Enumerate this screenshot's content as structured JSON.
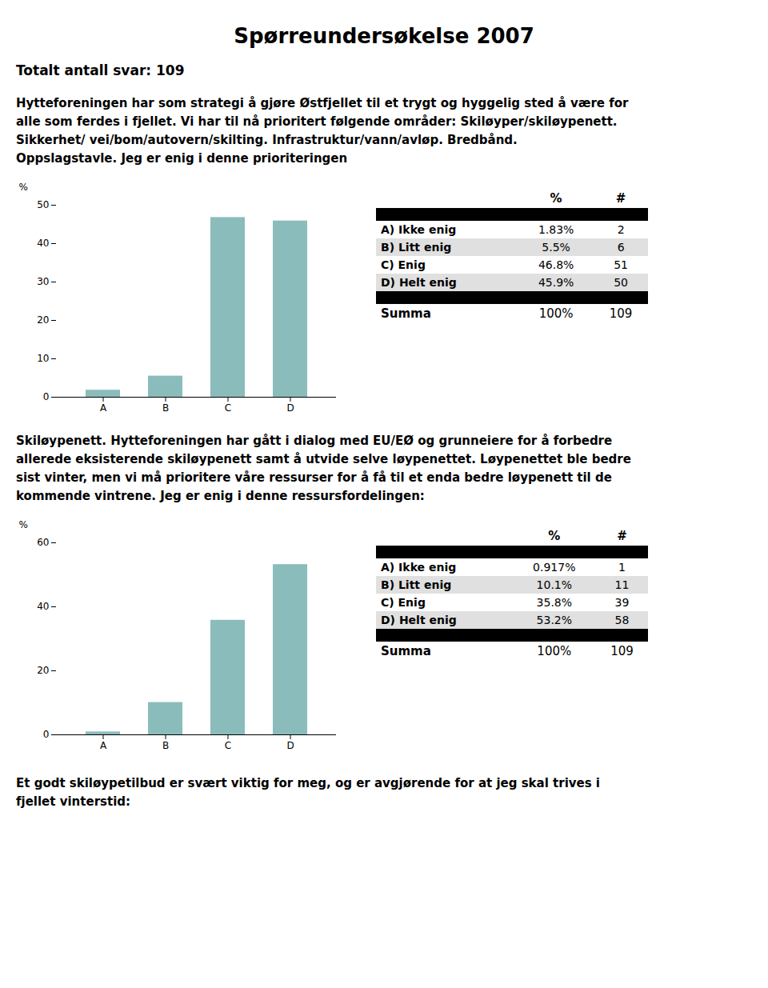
{
  "title": "Spørreundersøkelse 2007",
  "subtitle": "Totalt antall svar: 109",
  "chart_data": [
    {
      "type": "bar",
      "subtitle": "Hytteforeningen har som strategi å gjøre Østfjellet til et trygt og hyggelig sted å være for\nalle som ferdes i fjellet. Vi har til nå prioritert følgende områder: Skiløyper/skiløypenett.\nSikkerhet/ vei/bom/autovern/skilting. Infrastruktur/vann/avløp. Bredbånd.\nOppslagstavle. Jeg er enig i denne prioriteringen",
      "categories": [
        "A",
        "B",
        "C",
        "D"
      ],
      "values": [
        1.83,
        5.5,
        46.8,
        45.9
      ],
      "color": "#8bbcbc",
      "ylabel": "%",
      "ylim": [
        0,
        50
      ],
      "yticks": [
        0,
        10,
        20,
        30,
        40,
        50
      ],
      "grid": false,
      "table": {
        "columns": [
          "%",
          "#"
        ],
        "rows": [
          [
            "A) Ikke enig",
            "1.83%",
            "2"
          ],
          [
            "B) Litt enig",
            "5.5%",
            "6"
          ],
          [
            "C) Enig",
            "46.8%",
            "51"
          ],
          [
            "D) Helt enig",
            "45.9%",
            "50"
          ]
        ],
        "total": [
          "Summa",
          "100%",
          "109"
        ]
      }
    },
    {
      "type": "bar",
      "subtitle": "Skiløypenett. Hytteforeningen har gått i dialog med EU/EØ og grunneiere for å forbedre\nallerede eksisterende skiløypenett samt å utvide selve løypenettet. Løypenettet ble bedre\nsist vinter, men vi må prioritere våre ressurser for å få til et enda bedre løypenett til de\nkommende vintrene. Jeg er enig i denne ressursfordelingen:",
      "categories": [
        "A",
        "B",
        "C",
        "D"
      ],
      "values": [
        0.917,
        10.1,
        35.8,
        53.2
      ],
      "color": "#8bbcbc",
      "ylabel": "%",
      "ylim": [
        0,
        60
      ],
      "yticks": [
        0,
        20,
        40,
        60
      ],
      "grid": false,
      "table": {
        "columns": [
          "%",
          "#"
        ],
        "rows": [
          [
            "A) Ikke enig",
            "0.917%",
            "1"
          ],
          [
            "B) Litt enig",
            "10.1%",
            "11"
          ],
          [
            "C) Enig",
            "35.8%",
            "39"
          ],
          [
            "D) Helt enig",
            "53.2%",
            "58"
          ]
        ],
        "total": [
          "Summa",
          "100%",
          "109"
        ]
      }
    }
  ],
  "caption": "Et godt skiløypetilbud er svært viktig for meg, og er avgjørende for at jeg skal trives i\nfjellet vinterstid:"
}
